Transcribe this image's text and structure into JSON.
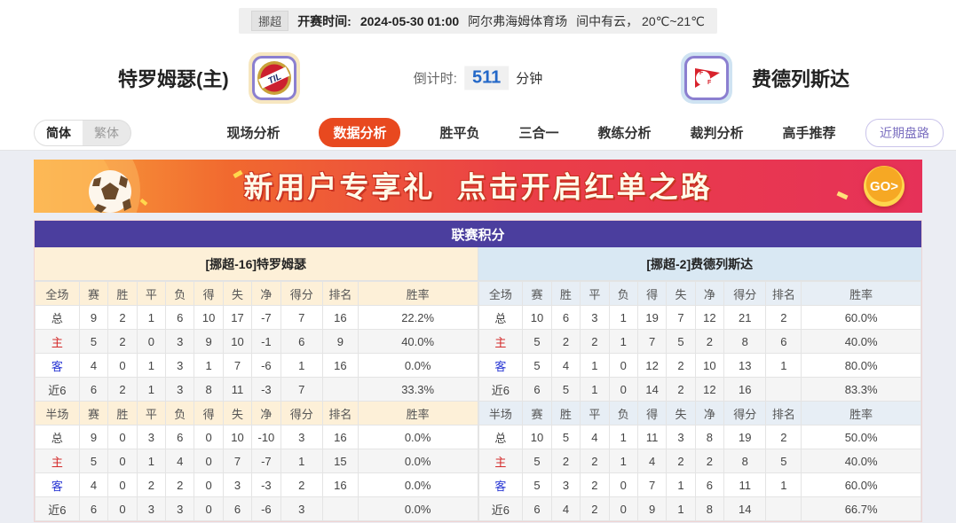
{
  "top_bar": {
    "league_badge": "挪超",
    "kickoff_label": "开赛时间:",
    "kickoff_time": "2024-05-30 01:00",
    "venue": "阿尔弗海姆体育场",
    "weather": "间中有云， 20℃~21℃"
  },
  "match_header": {
    "home_name": "特罗姆瑟(主)",
    "home_logo_text": "TIL",
    "countdown_label": "倒计时:",
    "countdown_value": "511",
    "countdown_unit": "分钟",
    "away_name": "费德列斯达",
    "away_logo_letter": "F"
  },
  "nav": {
    "lang": [
      {
        "name": "lang-simplified",
        "label": "简体",
        "active": true
      },
      {
        "name": "lang-traditional",
        "label": "繁体",
        "active": false
      }
    ],
    "tabs": [
      {
        "name": "tab-live-analysis",
        "label": "现场分析",
        "active": false
      },
      {
        "name": "tab-data-analysis",
        "label": "数据分析",
        "active": true
      },
      {
        "name": "tab-win-draw-lose",
        "label": "胜平负",
        "active": false
      },
      {
        "name": "tab-three-in-one",
        "label": "三合一",
        "active": false
      },
      {
        "name": "tab-coach-analysis",
        "label": "教练分析",
        "active": false
      },
      {
        "name": "tab-referee-analysis",
        "label": "裁判分析",
        "active": false
      },
      {
        "name": "tab-expert-picks",
        "label": "高手推荐",
        "active": false
      }
    ],
    "recent_odds_button": "近期盘路"
  },
  "banner": {
    "text": "新用户专享礼  点击开启红单之路",
    "go_label": "GO>"
  },
  "league_table": {
    "title": "联赛积分",
    "home": {
      "header": "[挪超-16]特罗姆瑟",
      "full_columns": [
        "全场",
        "赛",
        "胜",
        "平",
        "负",
        "得",
        "失",
        "净",
        "得分",
        "排名",
        "胜率"
      ],
      "full_rows": [
        [
          "总",
          "9",
          "2",
          "1",
          "6",
          "10",
          "17",
          "-7",
          "7",
          "16",
          "22.2%"
        ],
        [
          "主",
          "5",
          "2",
          "0",
          "3",
          "9",
          "10",
          "-1",
          "6",
          "9",
          "40.0%"
        ],
        [
          "客",
          "4",
          "0",
          "1",
          "3",
          "1",
          "7",
          "-6",
          "1",
          "16",
          "0.0%"
        ],
        [
          "近6",
          "6",
          "2",
          "1",
          "3",
          "8",
          "11",
          "-3",
          "7",
          "",
          "33.3%"
        ]
      ],
      "half_columns": [
        "半场",
        "赛",
        "胜",
        "平",
        "负",
        "得",
        "失",
        "净",
        "得分",
        "排名",
        "胜率"
      ],
      "half_rows": [
        [
          "总",
          "9",
          "0",
          "3",
          "6",
          "0",
          "10",
          "-10",
          "3",
          "16",
          "0.0%"
        ],
        [
          "主",
          "5",
          "0",
          "1",
          "4",
          "0",
          "7",
          "-7",
          "1",
          "15",
          "0.0%"
        ],
        [
          "客",
          "4",
          "0",
          "2",
          "2",
          "0",
          "3",
          "-3",
          "2",
          "16",
          "0.0%"
        ],
        [
          "近6",
          "6",
          "0",
          "3",
          "3",
          "0",
          "6",
          "-6",
          "3",
          "",
          "0.0%"
        ]
      ]
    },
    "away": {
      "header": "[挪超-2]费德列斯达",
      "full_columns": [
        "全场",
        "赛",
        "胜",
        "平",
        "负",
        "得",
        "失",
        "净",
        "得分",
        "排名",
        "胜率"
      ],
      "full_rows": [
        [
          "总",
          "10",
          "6",
          "3",
          "1",
          "19",
          "7",
          "12",
          "21",
          "2",
          "60.0%"
        ],
        [
          "主",
          "5",
          "2",
          "2",
          "1",
          "7",
          "5",
          "2",
          "8",
          "6",
          "40.0%"
        ],
        [
          "客",
          "5",
          "4",
          "1",
          "0",
          "12",
          "2",
          "10",
          "13",
          "1",
          "80.0%"
        ],
        [
          "近6",
          "6",
          "5",
          "1",
          "0",
          "14",
          "2",
          "12",
          "16",
          "",
          "83.3%"
        ]
      ],
      "half_columns": [
        "半场",
        "赛",
        "胜",
        "平",
        "负",
        "得",
        "失",
        "净",
        "得分",
        "排名",
        "胜率"
      ],
      "half_rows": [
        [
          "总",
          "10",
          "5",
          "4",
          "1",
          "11",
          "3",
          "8",
          "19",
          "2",
          "50.0%"
        ],
        [
          "主",
          "5",
          "2",
          "2",
          "1",
          "4",
          "2",
          "2",
          "8",
          "5",
          "40.0%"
        ],
        [
          "客",
          "5",
          "3",
          "2",
          "0",
          "7",
          "1",
          "6",
          "11",
          "1",
          "60.0%"
        ],
        [
          "近6",
          "6",
          "4",
          "2",
          "0",
          "9",
          "1",
          "8",
          "14",
          "",
          "66.7%"
        ]
      ]
    }
  },
  "colors": {
    "accent_red": "#e8491f",
    "title_purple": "#4b3e9e",
    "home_header_bg": "#fdf0d8",
    "away_header_bg": "#d9e8f3",
    "countdown_blue": "#2468c8",
    "home_row_label": "#d42a2a",
    "away_row_label": "#2937d4"
  }
}
